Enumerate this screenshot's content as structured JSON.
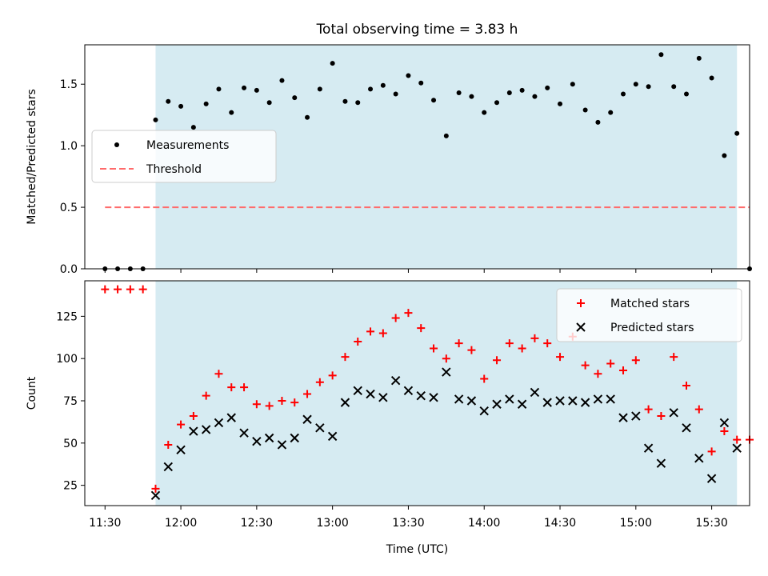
{
  "chart_data": [
    {
      "type": "scatter",
      "title": "Total observing time = 3.83 h",
      "xlabel": "",
      "ylabel": "Matched/Predicted stars",
      "xlim": [
        "11:22",
        "15:45"
      ],
      "ylim": [
        0,
        1.82
      ],
      "yticks": [
        "0.0",
        "0.5",
        "1.0",
        "1.5"
      ],
      "legend_position": "center-left",
      "shaded_span": [
        "11:50",
        "15:40"
      ],
      "series": [
        {
          "name": "Measurements",
          "marker": "dot",
          "color": "#000000",
          "x": [
            "11:30",
            "11:35",
            "11:40",
            "11:45",
            "11:50",
            "11:55",
            "12:00",
            "12:05",
            "12:10",
            "12:15",
            "12:20",
            "12:25",
            "12:30",
            "12:35",
            "12:40",
            "12:45",
            "12:50",
            "12:55",
            "13:00",
            "13:05",
            "13:10",
            "13:15",
            "13:20",
            "13:25",
            "13:30",
            "13:35",
            "13:40",
            "13:45",
            "13:50",
            "13:55",
            "14:00",
            "14:05",
            "14:10",
            "14:15",
            "14:20",
            "14:25",
            "14:30",
            "14:35",
            "14:40",
            "14:45",
            "14:50",
            "14:55",
            "15:00",
            "15:05",
            "15:10",
            "15:15",
            "15:20",
            "15:25",
            "15:30",
            "15:35",
            "15:40",
            "15:45"
          ],
          "y": [
            0,
            0,
            0,
            0,
            1.21,
            1.36,
            1.32,
            1.15,
            1.34,
            1.46,
            1.27,
            1.47,
            1.45,
            1.35,
            1.53,
            1.39,
            1.23,
            1.46,
            1.67,
            1.36,
            1.35,
            1.46,
            1.49,
            1.42,
            1.57,
            1.51,
            1.37,
            1.08,
            1.43,
            1.4,
            1.27,
            1.35,
            1.43,
            1.45,
            1.4,
            1.47,
            1.34,
            1.5,
            1.29,
            1.19,
            1.27,
            1.42,
            1.5,
            1.48,
            1.74,
            1.48,
            1.42,
            1.71,
            1.55,
            0.92,
            1.1,
            0
          ]
        },
        {
          "name": "Threshold",
          "style": "dashed",
          "color": "#ff6b6b",
          "x": [
            "11:30",
            "15:45"
          ],
          "y": [
            0.5,
            0.5
          ]
        }
      ]
    },
    {
      "type": "scatter",
      "title": "",
      "xlabel": "Time (UTC)",
      "ylabel": "Count",
      "xlim": [
        "11:22",
        "15:45"
      ],
      "ylim": [
        13,
        146
      ],
      "yticks": [
        "25",
        "50",
        "75",
        "100",
        "125"
      ],
      "xticks": [
        "11:30",
        "12:00",
        "12:30",
        "13:00",
        "13:30",
        "14:00",
        "14:30",
        "15:00",
        "15:30"
      ],
      "legend_position": "top-right",
      "shaded_span": [
        "11:50",
        "15:40"
      ],
      "series": [
        {
          "name": "Matched stars",
          "marker": "plus",
          "color": "#ff0000",
          "x": [
            "11:30",
            "11:35",
            "11:40",
            "11:45",
            "11:50",
            "11:55",
            "12:00",
            "12:05",
            "12:10",
            "12:15",
            "12:20",
            "12:25",
            "12:30",
            "12:35",
            "12:40",
            "12:45",
            "12:50",
            "12:55",
            "13:00",
            "13:05",
            "13:10",
            "13:15",
            "13:20",
            "13:25",
            "13:30",
            "13:35",
            "13:40",
            "13:45",
            "13:50",
            "13:55",
            "14:00",
            "14:05",
            "14:10",
            "14:15",
            "14:20",
            "14:25",
            "14:30",
            "14:35",
            "14:40",
            "14:45",
            "14:50",
            "14:55",
            "15:00",
            "15:05",
            "15:10",
            "15:15",
            "15:20",
            "15:25",
            "15:30",
            "15:35",
            "15:40",
            "15:45"
          ],
          "y": [
            141,
            141,
            141,
            141,
            23,
            49,
            61,
            66,
            78,
            91,
            83,
            83,
            73,
            72,
            75,
            74,
            79,
            86,
            90,
            101,
            110,
            116,
            115,
            124,
            127,
            118,
            106,
            100,
            109,
            105,
            88,
            99,
            109,
            106,
            112,
            109,
            101,
            113,
            96,
            91,
            97,
            93,
            99,
            70,
            66,
            101,
            84,
            70,
            45,
            57,
            52,
            52
          ]
        },
        {
          "name": "Predicted stars",
          "marker": "x",
          "color": "#000000",
          "x": [
            "11:50",
            "11:55",
            "12:00",
            "12:05",
            "12:10",
            "12:15",
            "12:20",
            "12:25",
            "12:30",
            "12:35",
            "12:40",
            "12:45",
            "12:50",
            "12:55",
            "13:00",
            "13:05",
            "13:10",
            "13:15",
            "13:20",
            "13:25",
            "13:30",
            "13:35",
            "13:40",
            "13:45",
            "13:50",
            "13:55",
            "14:00",
            "14:05",
            "14:10",
            "14:15",
            "14:20",
            "14:25",
            "14:30",
            "14:35",
            "14:40",
            "14:45",
            "14:50",
            "14:55",
            "15:00",
            "15:05",
            "15:10",
            "15:15",
            "15:20",
            "15:25",
            "15:30",
            "15:35",
            "15:40"
          ],
          "y": [
            19,
            36,
            46,
            57,
            58,
            62,
            65,
            56,
            51,
            53,
            49,
            53,
            64,
            59,
            54,
            74,
            81,
            79,
            77,
            87,
            81,
            78,
            77,
            92,
            76,
            75,
            69,
            73,
            76,
            73,
            80,
            74,
            75,
            75,
            74,
            76,
            76,
            65,
            66,
            47,
            38,
            68,
            59,
            41,
            29,
            62,
            47
          ]
        }
      ]
    }
  ]
}
